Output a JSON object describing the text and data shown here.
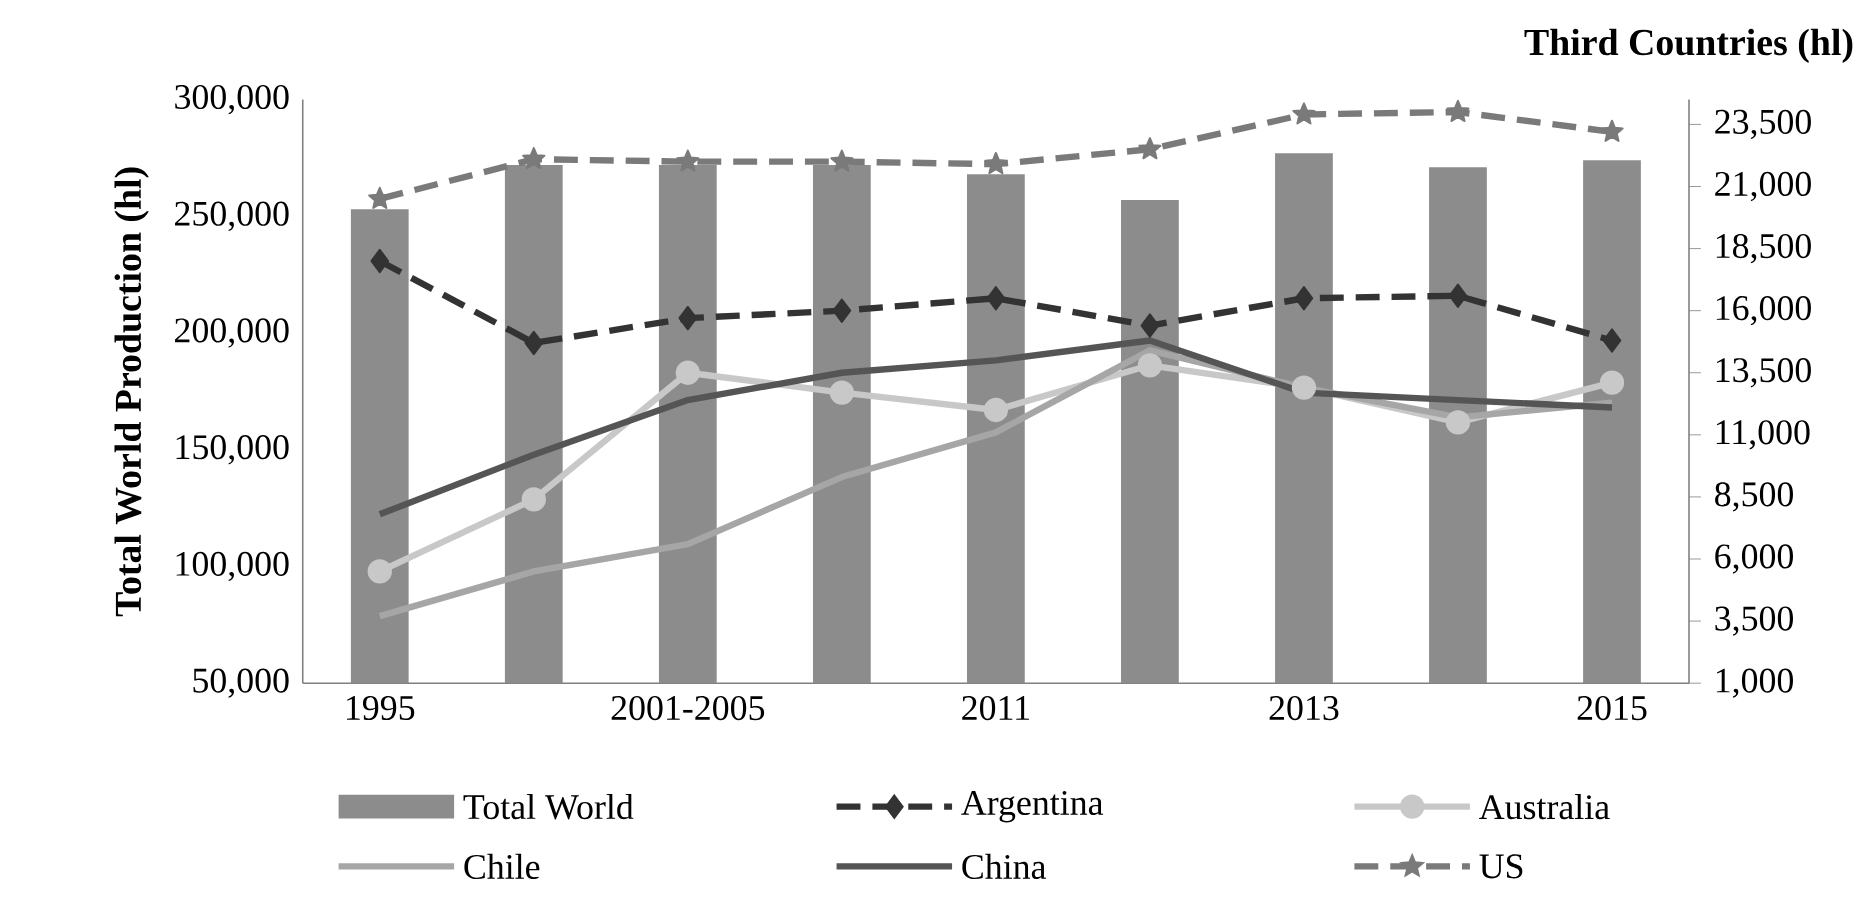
{
  "chart_data": {
    "type": "bar",
    "categories": [
      "1995",
      null,
      "2001-2005",
      null,
      "2011",
      null,
      "2013",
      null,
      "2015"
    ],
    "ylabel": "Total World Production (hl)",
    "y2label": "Third Countries (hl)",
    "ylim": [
      50000,
      300000
    ],
    "yticks": [
      {
        "value": 50000,
        "label": "50,000"
      },
      {
        "value": 100000,
        "label": "100,000"
      },
      {
        "value": 150000,
        "label": "150,000"
      },
      {
        "value": 200000,
        "label": "200,000"
      },
      {
        "value": 250000,
        "label": "250,000"
      },
      {
        "value": 300000,
        "label": "300,000"
      }
    ],
    "y2lim": [
      1000,
      24500
    ],
    "y2ticks": [
      {
        "value": 1000,
        "label": "1,000"
      },
      {
        "value": 3500,
        "label": "3,500"
      },
      {
        "value": 6000,
        "label": "6,000"
      },
      {
        "value": 8500,
        "label": "8,500"
      },
      {
        "value": 11000,
        "label": "11,000"
      },
      {
        "value": 13500,
        "label": "13,500"
      },
      {
        "value": 16000,
        "label": "16,000"
      },
      {
        "value": 18500,
        "label": "18,500"
      },
      {
        "value": 21000,
        "label": "21,000"
      },
      {
        "value": 23500,
        "label": "23,500"
      }
    ],
    "legend": "bottom",
    "grid": false,
    "series": [
      {
        "name": "Total World",
        "color": "#8c8c8c",
        "values": [
          253000,
          272000,
          272000,
          272000,
          268000,
          257000,
          277000,
          271000,
          274000
        ]
      },
      {
        "name": "Argentina",
        "type": "line",
        "axis": "y2",
        "color": "#333333",
        "line_style": "dashed",
        "marker": "diamond",
        "values": [
          18000,
          14700,
          15700,
          16000,
          16500,
          15400,
          16500,
          16600,
          14800
        ]
      },
      {
        "name": "Australia",
        "type": "line",
        "axis": "y2",
        "color": "#c8c8c8",
        "line_style": "solid",
        "marker": "circle",
        "values": [
          5500,
          8400,
          13500,
          12700,
          12000,
          13800,
          12900,
          11500,
          13100
        ]
      },
      {
        "name": "Chile",
        "type": "line",
        "axis": "y2",
        "color": "#a6a6a6",
        "line_style": "solid",
        "marker": "none",
        "values": [
          3700,
          5500,
          6600,
          9300,
          11100,
          14400,
          12900,
          11700,
          12300
        ]
      },
      {
        "name": "China",
        "type": "line",
        "axis": "y2",
        "color": "#555555",
        "line_style": "solid",
        "marker": "none",
        "values": [
          7800,
          10200,
          12400,
          13500,
          14000,
          14800,
          12700,
          12400,
          12100
        ]
      },
      {
        "name": "US",
        "type": "line",
        "axis": "y2",
        "color": "#7a7a7a",
        "line_style": "dashed",
        "marker": "star",
        "values": [
          20500,
          22100,
          22000,
          22000,
          21900,
          22500,
          23900,
          24000,
          23200
        ]
      }
    ]
  }
}
